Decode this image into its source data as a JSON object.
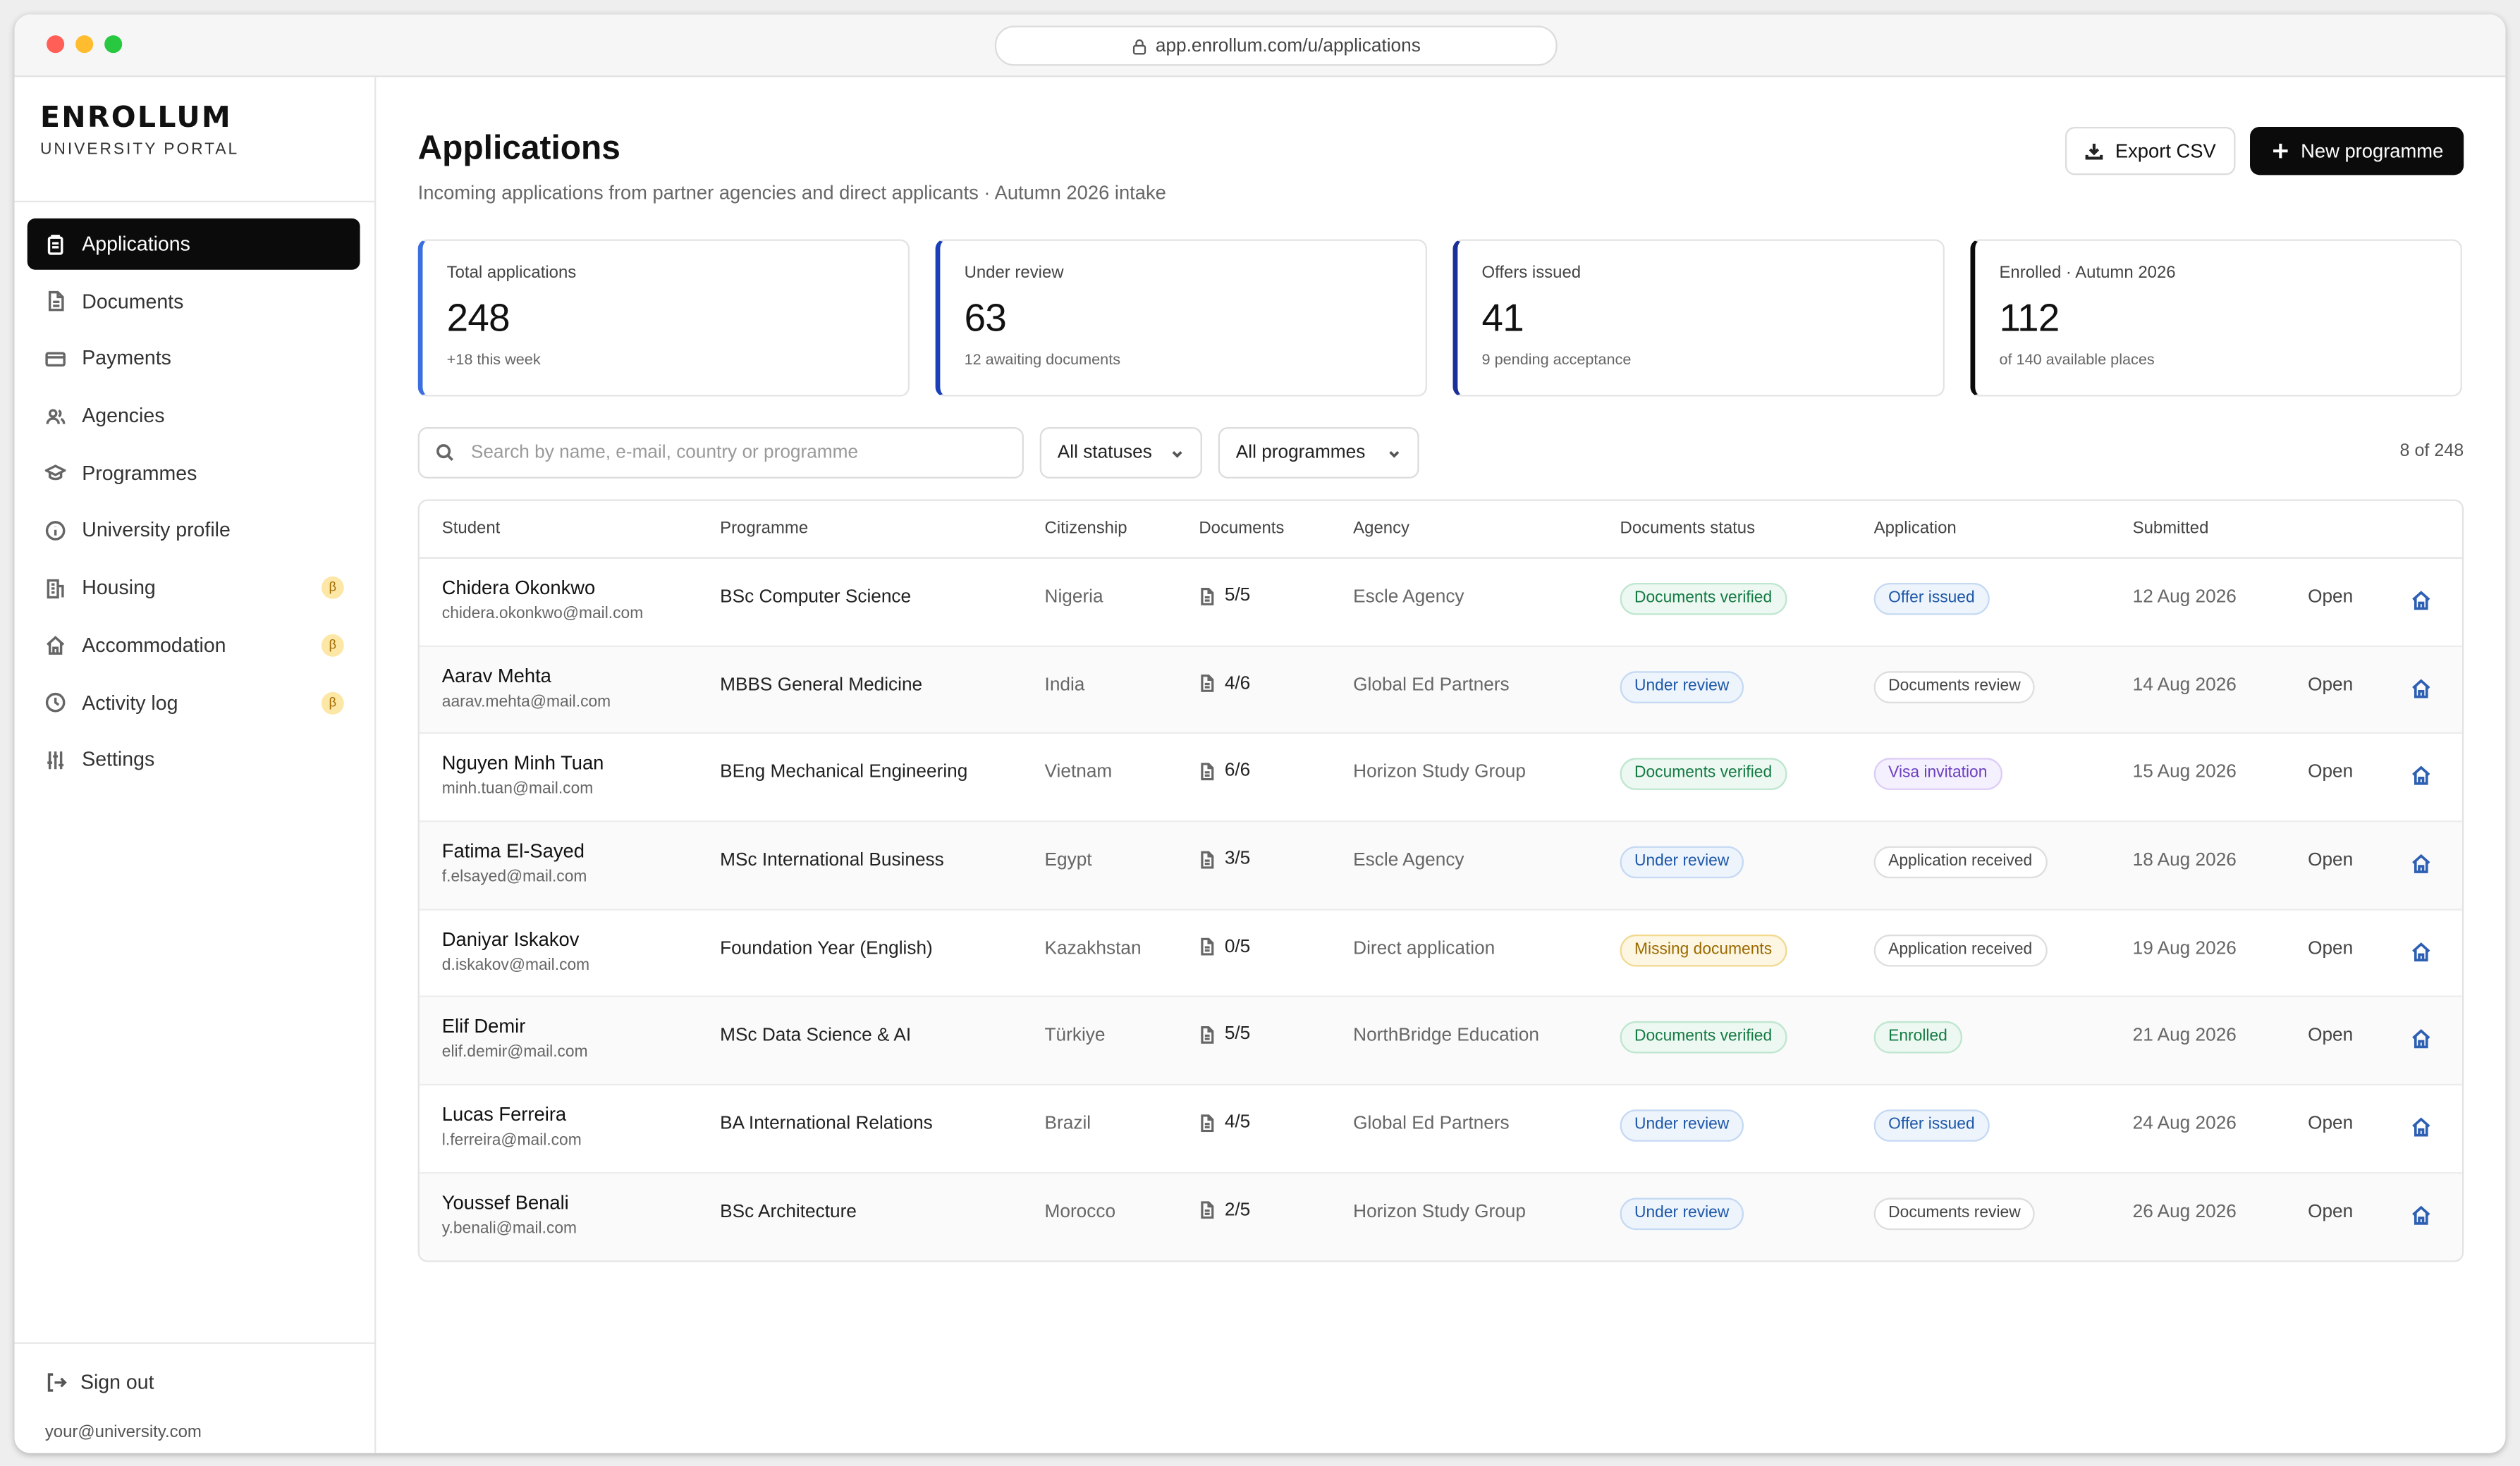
{
  "browser": {
    "url": "app.enrollum.com/u/applications"
  },
  "brand": {
    "name": "ENROLLUM",
    "subtitle": "UNIVERSITY PORTAL"
  },
  "sidebar": {
    "items": [
      {
        "label": "Applications",
        "icon": "clipboard-icon",
        "active": true
      },
      {
        "label": "Documents",
        "icon": "document-icon"
      },
      {
        "label": "Payments",
        "icon": "card-icon"
      },
      {
        "label": "Agencies",
        "icon": "users-icon"
      },
      {
        "label": "Programmes",
        "icon": "graduation-cap-icon"
      },
      {
        "label": "University profile",
        "icon": "info-icon"
      },
      {
        "label": "Housing",
        "icon": "building-icon",
        "badge": "β"
      },
      {
        "label": "Accommodation",
        "icon": "home-icon",
        "badge": "β"
      },
      {
        "label": "Activity log",
        "icon": "activity-icon",
        "badge": "β"
      },
      {
        "label": "Settings",
        "icon": "sliders-icon"
      }
    ],
    "signout_label": "Sign out",
    "user_email": "your@university.com"
  },
  "header": {
    "title": "Applications",
    "subtitle": "Incoming applications from partner agencies and direct applicants · Autumn 2026 intake",
    "export_label": "Export CSV",
    "new_label": "New programme"
  },
  "stats": [
    {
      "label": "Total applications",
      "value": "248",
      "note": "+18 this week",
      "accent": "#3b6fe0"
    },
    {
      "label": "Under review",
      "value": "63",
      "note": "12 awaiting documents",
      "accent": "#1a3fb8"
    },
    {
      "label": "Offers issued",
      "value": "41",
      "note": "9 pending acceptance",
      "accent": "#1b2f9a"
    },
    {
      "label": "Enrolled · Autumn 2026",
      "value": "112",
      "note": "of 140 available places",
      "accent": "#0b0b0b"
    }
  ],
  "filters": {
    "search_placeholder": "Search by name, e-mail, country or programme",
    "status_value": "All statuses",
    "programme_value": "All programmes",
    "count": "8 of 248"
  },
  "table": {
    "headers": [
      "Student",
      "Programme",
      "Citizenship",
      "Documents",
      "Agency",
      "Documents status",
      "Application",
      "Submitted"
    ],
    "open_label": "Open",
    "rows": [
      {
        "name": "Chidera Okonkwo",
        "email": "chidera.okonkwo@mail.com",
        "programme": "BSc Computer Science",
        "citizenship": "Nigeria",
        "documents": "5/5",
        "agency": "Escle Agency",
        "doc_status": "Documents verified",
        "doc_tone": "green",
        "application": "Offer issued",
        "app_tone": "blue",
        "submitted": "12 Aug 2026"
      },
      {
        "name": "Aarav Mehta",
        "email": "aarav.mehta@mail.com",
        "programme": "MBBS General Medicine",
        "citizenship": "India",
        "documents": "4/6",
        "agency": "Global Ed Partners",
        "doc_status": "Under review",
        "doc_tone": "blue",
        "application": "Documents review",
        "app_tone": "gray",
        "submitted": "14 Aug 2026"
      },
      {
        "name": "Nguyen Minh Tuan",
        "email": "minh.tuan@mail.com",
        "programme": "BEng Mechanical Engineering",
        "citizenship": "Vietnam",
        "documents": "6/6",
        "agency": "Horizon Study Group",
        "doc_status": "Documents verified",
        "doc_tone": "green",
        "application": "Visa invitation",
        "app_tone": "purple",
        "submitted": "15 Aug 2026"
      },
      {
        "name": "Fatima El-Sayed",
        "email": "f.elsayed@mail.com",
        "programme": "MSc International Business",
        "citizenship": "Egypt",
        "documents": "3/5",
        "agency": "Escle Agency",
        "doc_status": "Under review",
        "doc_tone": "blue",
        "application": "Application received",
        "app_tone": "gray",
        "submitted": "18 Aug 2026"
      },
      {
        "name": "Daniyar Iskakov",
        "email": "d.iskakov@mail.com",
        "programme": "Foundation Year (English)",
        "citizenship": "Kazakhstan",
        "documents": "0/5",
        "agency": "Direct application",
        "doc_status": "Missing documents",
        "doc_tone": "amber",
        "application": "Application received",
        "app_tone": "gray",
        "submitted": "19 Aug 2026"
      },
      {
        "name": "Elif Demir",
        "email": "elif.demir@mail.com",
        "programme": "MSc Data Science & AI",
        "citizenship": "Türkiye",
        "documents": "5/5",
        "agency": "NorthBridge Education",
        "doc_status": "Documents verified",
        "doc_tone": "green",
        "application": "Enrolled",
        "app_tone": "green",
        "submitted": "21 Aug 2026"
      },
      {
        "name": "Lucas Ferreira",
        "email": "l.ferreira@mail.com",
        "programme": "BA International Relations",
        "citizenship": "Brazil",
        "documents": "4/5",
        "agency": "Global Ed Partners",
        "doc_status": "Under review",
        "doc_tone": "blue",
        "application": "Offer issued",
        "app_tone": "blue",
        "submitted": "24 Aug 2026"
      },
      {
        "name": "Youssef Benali",
        "email": "y.benali@mail.com",
        "programme": "BSc Architecture",
        "citizenship": "Morocco",
        "documents": "2/5",
        "agency": "Horizon Study Group",
        "doc_status": "Under review",
        "doc_tone": "blue",
        "application": "Documents review",
        "app_tone": "gray",
        "submitted": "26 Aug 2026"
      }
    ]
  }
}
